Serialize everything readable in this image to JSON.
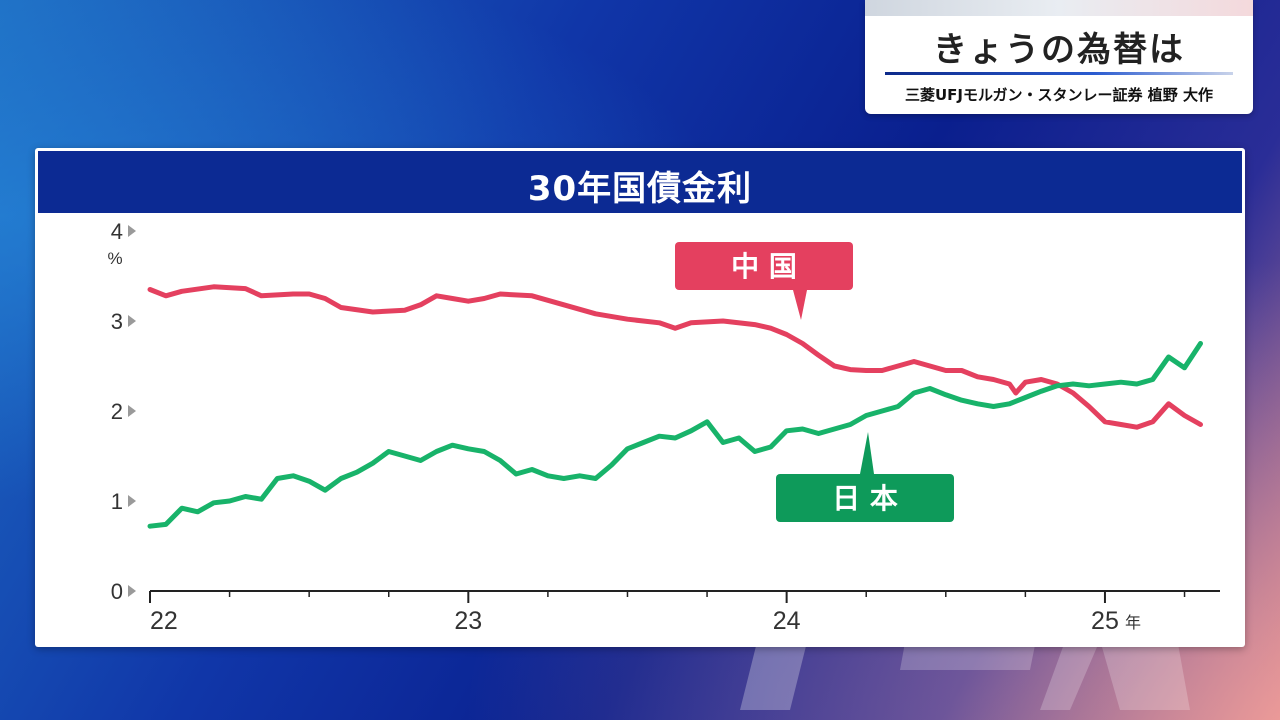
{
  "caption": {
    "title": "きょうの為替は",
    "subtitle": "三菱UFJモルガン・スタンレー証券  植野 大作"
  },
  "colors": {
    "china": "#e4405f",
    "japan": "#18b36a",
    "japan_label": "#0e9a5a",
    "header": "#0c2a93"
  },
  "chart_data": {
    "type": "line",
    "title": "30年国債金利",
    "ylabel": "%",
    "ylim": [
      0,
      4
    ],
    "yticks": [
      0,
      1,
      2,
      3,
      4
    ],
    "xlim": [
      2022.0,
      2025.33
    ],
    "xticks": [
      {
        "value": 2022,
        "label": "22"
      },
      {
        "value": 2023,
        "label": "23"
      },
      {
        "value": 2024,
        "label": "24"
      },
      {
        "value": 2025,
        "label": "25",
        "suffix": "年"
      }
    ],
    "grid": false,
    "series": [
      {
        "name": "中 国",
        "color": "#e4405f",
        "x": [
          2022.0,
          2022.05,
          2022.1,
          2022.2,
          2022.3,
          2022.35,
          2022.45,
          2022.5,
          2022.55,
          2022.6,
          2022.7,
          2022.8,
          2022.85,
          2022.9,
          2022.95,
          2023.0,
          2023.05,
          2023.1,
          2023.2,
          2023.3,
          2023.4,
          2023.5,
          2023.6,
          2023.65,
          2023.7,
          2023.8,
          2023.9,
          2023.95,
          2024.0,
          2024.05,
          2024.1,
          2024.15,
          2024.2,
          2024.25,
          2024.3,
          2024.4,
          2024.45,
          2024.5,
          2024.55,
          2024.6,
          2024.65,
          2024.7,
          2024.72,
          2024.75,
          2024.8,
          2024.85,
          2024.9,
          2024.95,
          2025.0,
          2025.05,
          2025.1,
          2025.15,
          2025.2,
          2025.25,
          2025.3
        ],
        "values": [
          3.35,
          3.28,
          3.33,
          3.38,
          3.36,
          3.28,
          3.3,
          3.3,
          3.25,
          3.15,
          3.1,
          3.12,
          3.18,
          3.28,
          3.25,
          3.22,
          3.25,
          3.3,
          3.28,
          3.18,
          3.08,
          3.02,
          2.98,
          2.92,
          2.98,
          3.0,
          2.96,
          2.92,
          2.85,
          2.75,
          2.62,
          2.5,
          2.46,
          2.45,
          2.45,
          2.55,
          2.5,
          2.45,
          2.45,
          2.38,
          2.35,
          2.3,
          2.2,
          2.32,
          2.35,
          2.3,
          2.2,
          2.05,
          1.88,
          1.85,
          1.82,
          1.88,
          2.08,
          1.95,
          1.85
        ]
      },
      {
        "name": "日 本",
        "color": "#18b36a",
        "x": [
          2022.0,
          2022.05,
          2022.1,
          2022.15,
          2022.2,
          2022.25,
          2022.3,
          2022.35,
          2022.4,
          2022.45,
          2022.5,
          2022.55,
          2022.6,
          2022.65,
          2022.7,
          2022.75,
          2022.8,
          2022.85,
          2022.9,
          2022.95,
          2023.0,
          2023.05,
          2023.1,
          2023.15,
          2023.2,
          2023.25,
          2023.3,
          2023.35,
          2023.4,
          2023.45,
          2023.5,
          2023.55,
          2023.6,
          2023.65,
          2023.7,
          2023.75,
          2023.8,
          2023.85,
          2023.9,
          2023.95,
          2024.0,
          2024.05,
          2024.1,
          2024.15,
          2024.2,
          2024.25,
          2024.3,
          2024.35,
          2024.4,
          2024.45,
          2024.5,
          2024.55,
          2024.6,
          2024.65,
          2024.7,
          2024.75,
          2024.8,
          2024.85,
          2024.9,
          2024.95,
          2025.0,
          2025.05,
          2025.1,
          2025.15,
          2025.2,
          2025.25,
          2025.3
        ],
        "values": [
          0.72,
          0.74,
          0.92,
          0.88,
          0.98,
          1.0,
          1.05,
          1.02,
          1.25,
          1.28,
          1.22,
          1.12,
          1.25,
          1.32,
          1.42,
          1.55,
          1.5,
          1.45,
          1.55,
          1.62,
          1.58,
          1.55,
          1.45,
          1.3,
          1.35,
          1.28,
          1.25,
          1.28,
          1.25,
          1.4,
          1.58,
          1.65,
          1.72,
          1.7,
          1.78,
          1.88,
          1.65,
          1.7,
          1.55,
          1.6,
          1.78,
          1.8,
          1.75,
          1.8,
          1.85,
          1.95,
          2.0,
          2.05,
          2.2,
          2.25,
          2.18,
          2.12,
          2.08,
          2.05,
          2.08,
          2.15,
          2.22,
          2.28,
          2.3,
          2.28,
          2.3,
          2.32,
          2.3,
          2.35,
          2.6,
          2.48,
          2.75
        ]
      }
    ],
    "annotations": [
      {
        "text": "中 国",
        "series": 0
      },
      {
        "text": "日 本",
        "series": 1
      }
    ]
  }
}
